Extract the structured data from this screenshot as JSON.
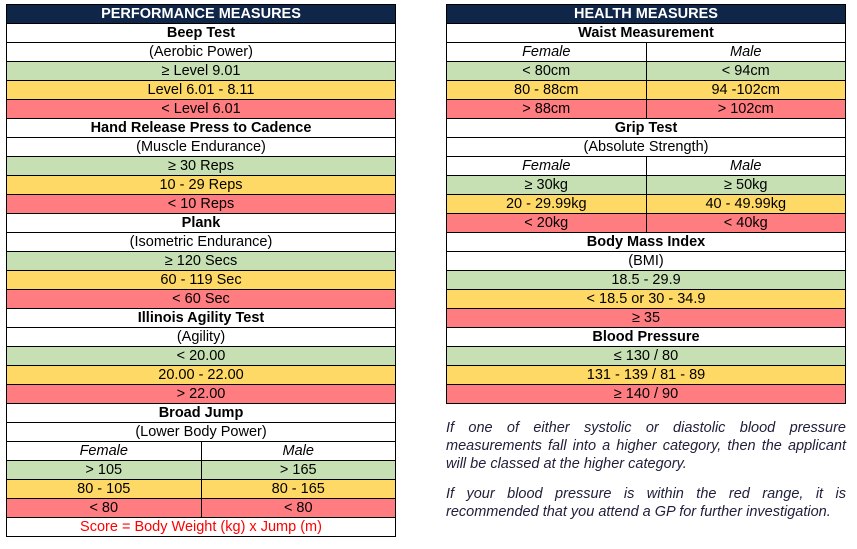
{
  "performance": {
    "header": "PERFORMANCE MEASURES",
    "beep_test": {
      "title": "Beep Test",
      "subtitle": "(Aerobic Power)",
      "green": "≥ Level 9.01",
      "yellow": "Level 6.01 - 8.11",
      "red": "< Level 6.01"
    },
    "hand_release": {
      "title": "Hand Release Press to Cadence",
      "subtitle": "(Muscle Endurance)",
      "green": "≥ 30 Reps",
      "yellow": "10 - 29 Reps",
      "red": "< 10 Reps"
    },
    "plank": {
      "title": "Plank",
      "subtitle": "(Isometric Endurance)",
      "green": "≥ 120 Secs",
      "yellow": "60 - 119 Sec",
      "red": "< 60 Sec"
    },
    "illinois": {
      "title": "Illinois Agility Test",
      "subtitle": "(Agility)",
      "green": "< 20.00",
      "yellow": "20.00 - 22.00",
      "red": "> 22.00"
    },
    "broad_jump": {
      "title": "Broad Jump",
      "subtitle": "(Lower Body Power)",
      "female_label": "Female",
      "male_label": "Male",
      "female_green": "> 105",
      "male_green": "> 165",
      "female_yellow": "80 - 105",
      "male_yellow": "80 - 165",
      "female_red": "< 80",
      "male_red": "< 80",
      "score": "Score = Body Weight (kg) x Jump (m)"
    }
  },
  "health": {
    "header": "HEALTH MEASURES",
    "waist": {
      "title": "Waist Measurement",
      "female_label": "Female",
      "male_label": "Male",
      "female_green": "< 80cm",
      "male_green": "< 94cm",
      "female_yellow": "80 - 88cm",
      "male_yellow": "94 -102cm",
      "female_red": "> 88cm",
      "male_red": "> 102cm"
    },
    "grip": {
      "title": "Grip Test",
      "subtitle": "(Absolute Strength)",
      "female_label": "Female",
      "male_label": "Male",
      "female_green": "≥ 30kg",
      "male_green": "≥ 50kg",
      "female_yellow": "20 - 29.99kg",
      "male_yellow": "40 - 49.99kg",
      "female_red": "< 20kg",
      "male_red": "< 40kg"
    },
    "bmi": {
      "title": "Body Mass Index",
      "subtitle": "(BMI)",
      "green": "18.5 - 29.9",
      "yellow": "< 18.5 or 30 - 34.9",
      "red": "≥ 35"
    },
    "blood_pressure": {
      "title": "Blood Pressure",
      "green": "≤ 130 / 80",
      "yellow": "131 - 139 / 81 - 89",
      "red": "≥ 140 / 90"
    },
    "note_1": "If one of either systolic or diastolic blood pressure measurements fall into a higher category, then the applicant will be classed at the higher category.",
    "note_2": "If your blood pressure is within the red range, it is recommended that you attend a GP for further investigation."
  },
  "colors": {
    "header": "#0f2649",
    "green": "#c6e0b4",
    "yellow": "#ffd966",
    "red": "#ff7c80",
    "score_text": "#ff0000"
  }
}
